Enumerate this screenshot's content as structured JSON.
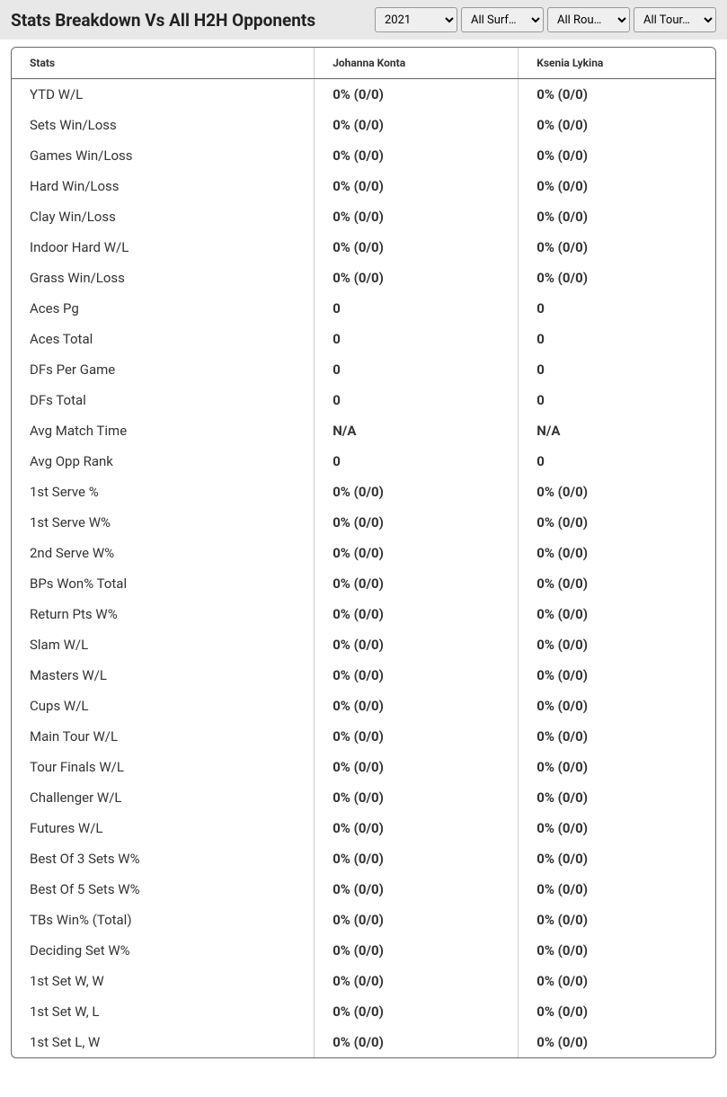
{
  "header": {
    "title": "Stats Breakdown Vs All H2H Opponents"
  },
  "filters": {
    "year": {
      "selected": "2021",
      "options": [
        "2021"
      ]
    },
    "surface": {
      "selected": "All Surf…",
      "options": [
        "All Surf…"
      ]
    },
    "round": {
      "selected": "All Rou…",
      "options": [
        "All Rou…"
      ]
    },
    "tournament": {
      "selected": "All Tour…",
      "options": [
        "All Tour…"
      ]
    }
  },
  "table": {
    "columns": [
      "Stats",
      "Johanna Konta",
      "Ksenia Lykina"
    ],
    "rows": [
      [
        "YTD W/L",
        "0% (0/0)",
        "0% (0/0)"
      ],
      [
        "Sets Win/Loss",
        "0% (0/0)",
        "0% (0/0)"
      ],
      [
        "Games Win/Loss",
        "0% (0/0)",
        "0% (0/0)"
      ],
      [
        "Hard Win/Loss",
        "0% (0/0)",
        "0% (0/0)"
      ],
      [
        "Clay Win/Loss",
        "0% (0/0)",
        "0% (0/0)"
      ],
      [
        "Indoor Hard W/L",
        "0% (0/0)",
        "0% (0/0)"
      ],
      [
        "Grass Win/Loss",
        "0% (0/0)",
        "0% (0/0)"
      ],
      [
        "Aces Pg",
        "0",
        "0"
      ],
      [
        "Aces Total",
        "0",
        "0"
      ],
      [
        "DFs Per Game",
        "0",
        "0"
      ],
      [
        "DFs Total",
        "0",
        "0"
      ],
      [
        "Avg Match Time",
        "N/A",
        "N/A"
      ],
      [
        "Avg Opp Rank",
        "0",
        "0"
      ],
      [
        "1st Serve %",
        "0% (0/0)",
        "0% (0/0)"
      ],
      [
        "1st Serve W%",
        "0% (0/0)",
        "0% (0/0)"
      ],
      [
        "2nd Serve W%",
        "0% (0/0)",
        "0% (0/0)"
      ],
      [
        "BPs Won% Total",
        "0% (0/0)",
        "0% (0/0)"
      ],
      [
        "Return Pts W%",
        "0% (0/0)",
        "0% (0/0)"
      ],
      [
        "Slam W/L",
        "0% (0/0)",
        "0% (0/0)"
      ],
      [
        "Masters W/L",
        "0% (0/0)",
        "0% (0/0)"
      ],
      [
        "Cups W/L",
        "0% (0/0)",
        "0% (0/0)"
      ],
      [
        "Main Tour W/L",
        "0% (0/0)",
        "0% (0/0)"
      ],
      [
        "Tour Finals W/L",
        "0% (0/0)",
        "0% (0/0)"
      ],
      [
        "Challenger W/L",
        "0% (0/0)",
        "0% (0/0)"
      ],
      [
        "Futures W/L",
        "0% (0/0)",
        "0% (0/0)"
      ],
      [
        "Best Of 3 Sets W%",
        "0% (0/0)",
        "0% (0/0)"
      ],
      [
        "Best Of 5 Sets W%",
        "0% (0/0)",
        "0% (0/0)"
      ],
      [
        "TBs Win% (Total)",
        "0% (0/0)",
        "0% (0/0)"
      ],
      [
        "Deciding Set W%",
        "0% (0/0)",
        "0% (0/0)"
      ],
      [
        "1st Set W, W",
        "0% (0/0)",
        "0% (0/0)"
      ],
      [
        "1st Set W, L",
        "0% (0/0)",
        "0% (0/0)"
      ],
      [
        "1st Set L, W",
        "0% (0/0)",
        "0% (0/0)"
      ]
    ]
  },
  "styles": {
    "header_bg": "#e8e8e8",
    "title_color": "#222222",
    "border_color": "#666666",
    "cell_border_color": "#cccccc",
    "text_color": "#333333"
  }
}
